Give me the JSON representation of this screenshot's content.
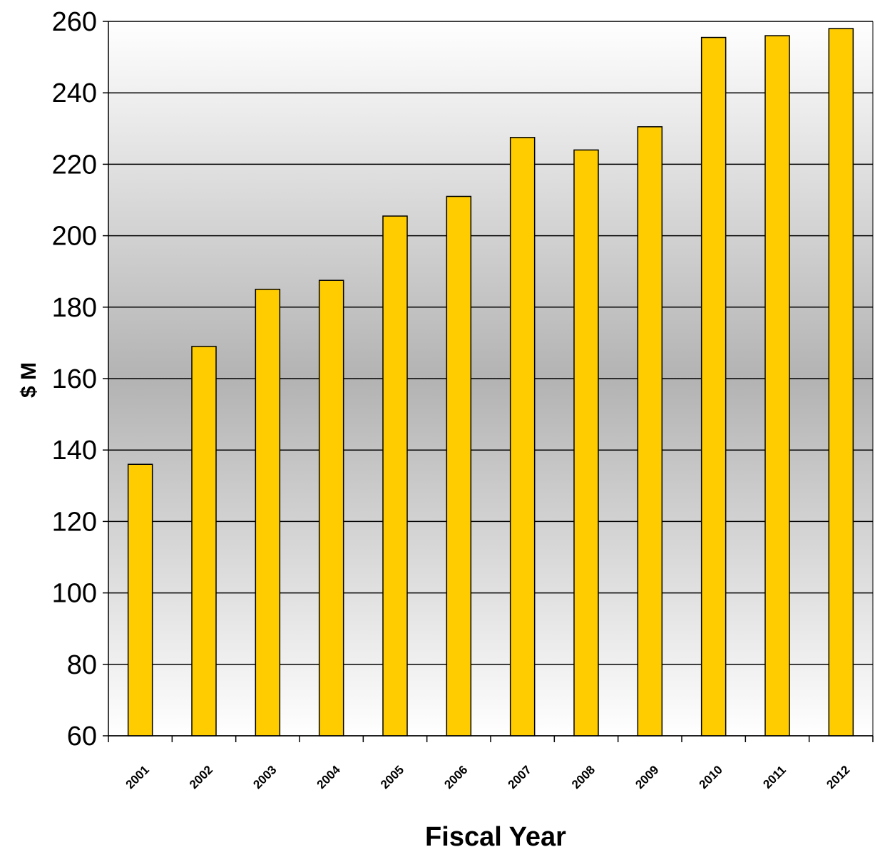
{
  "chart_data": {
    "type": "bar",
    "title": "",
    "xlabel": "Fiscal Year",
    "ylabel": "$ M",
    "categories": [
      "2001",
      "2002",
      "2003",
      "2004",
      "2005",
      "2006",
      "2007",
      "2008",
      "2009",
      "2010",
      "2011",
      "2012"
    ],
    "values": [
      136,
      169,
      185,
      187.5,
      205.5,
      211,
      227.5,
      224,
      230.5,
      255.5,
      256,
      258
    ],
    "ylim": [
      60,
      260
    ],
    "yticks": [
      "60",
      "80",
      "100",
      "120",
      "140",
      "160",
      "180",
      "200",
      "220",
      "240",
      "260"
    ],
    "grid": true,
    "legend": "none",
    "colors": {
      "bar_fill": "#ffcc00",
      "bar_stroke": "#000000",
      "background_edge": "#ffffff",
      "background_middle": "#b3b3b3"
    }
  }
}
